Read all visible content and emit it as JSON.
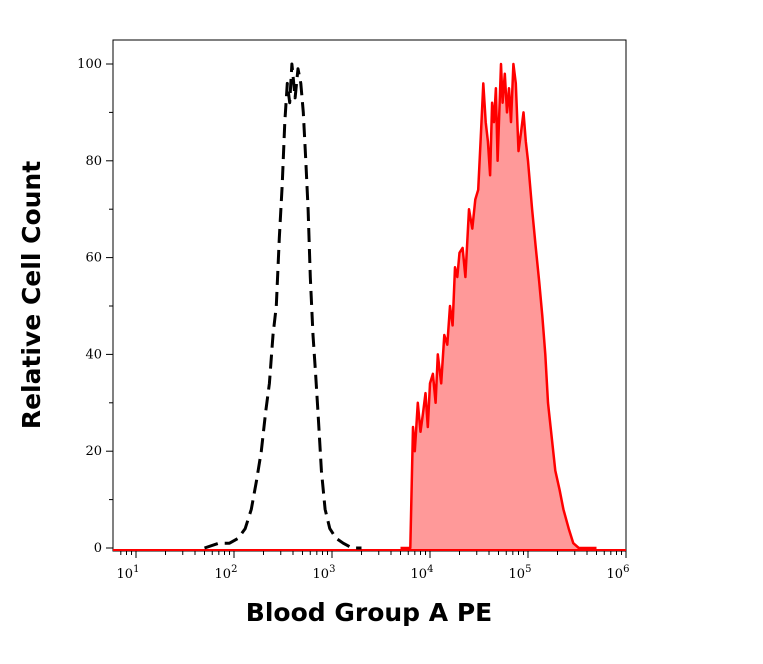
{
  "chart_data": {
    "type": "area",
    "title": "",
    "xlabel": "Blood Group A PE",
    "ylabel": "Relative Cell Count",
    "x_scale": "log",
    "xlim": [
      7,
      1200000
    ],
    "ylim": [
      0,
      100
    ],
    "x_ticks": [
      {
        "base": "10",
        "exp": "1",
        "value": 10
      },
      {
        "base": "10",
        "exp": "2",
        "value": 100
      },
      {
        "base": "10",
        "exp": "3",
        "value": 1000
      },
      {
        "base": "10",
        "exp": "4",
        "value": 10000
      },
      {
        "base": "10",
        "exp": "5",
        "value": 100000
      },
      {
        "base": "10",
        "exp": "6",
        "value": 1000000
      }
    ],
    "y_ticks": [
      "0",
      "20",
      "40",
      "60",
      "80",
      "100"
    ],
    "grid": false,
    "legend": "none",
    "colors": {
      "control": "#000000",
      "sample_line": "#ff0000",
      "sample_fill": "#ff9999"
    },
    "series": [
      {
        "style": "dashed-black",
        "x": [
          50,
          70,
          90,
          110,
          130,
          150,
          170,
          190,
          210,
          230,
          250,
          270,
          290,
          310,
          330,
          350,
          370,
          390,
          420,
          450,
          480,
          510,
          540,
          570,
          600,
          640,
          680,
          720,
          780,
          850,
          950,
          1100,
          1300,
          1600,
          2000
        ],
        "y": [
          0,
          1,
          1,
          2,
          4,
          8,
          14,
          20,
          28,
          34,
          44,
          50,
          64,
          75,
          88,
          96,
          92,
          100,
          93,
          99,
          96,
          90,
          80,
          70,
          56,
          44,
          36,
          28,
          16,
          8,
          4,
          2,
          1,
          0,
          0
        ]
      },
      {
        "style": "filled-red",
        "x": [
          5000,
          6300,
          6700,
          7000,
          7500,
          8000,
          8500,
          9000,
          9500,
          10000,
          10700,
          11400,
          12000,
          13000,
          14000,
          15000,
          16000,
          17000,
          18000,
          19000,
          20000,
          21500,
          23000,
          25000,
          27000,
          29000,
          31000,
          33000,
          35000,
          37000,
          39000,
          41000,
          43000,
          45000,
          47000,
          49000,
          51000,
          53000,
          55000,
          58000,
          61000,
          64000,
          67000,
          71000,
          75000,
          80000,
          85000,
          90000,
          95000,
          100000,
          110000,
          120000,
          130000,
          140000,
          150000,
          160000,
          170000,
          190000,
          210000,
          230000,
          260000,
          290000,
          330000,
          400000,
          500000
        ],
        "y": [
          0,
          0,
          25,
          20,
          30,
          24,
          28,
          32,
          25,
          34,
          36,
          30,
          40,
          34,
          44,
          42,
          50,
          46,
          58,
          56,
          61,
          62,
          56,
          70,
          66,
          72,
          74,
          85,
          96,
          88,
          84,
          77,
          92,
          88,
          95,
          80,
          90,
          100,
          92,
          98,
          90,
          95,
          88,
          100,
          96,
          82,
          86,
          90,
          84,
          80,
          70,
          62,
          55,
          48,
          40,
          30,
          25,
          16,
          12,
          8,
          4,
          1,
          0,
          0,
          0
        ]
      }
    ]
  }
}
